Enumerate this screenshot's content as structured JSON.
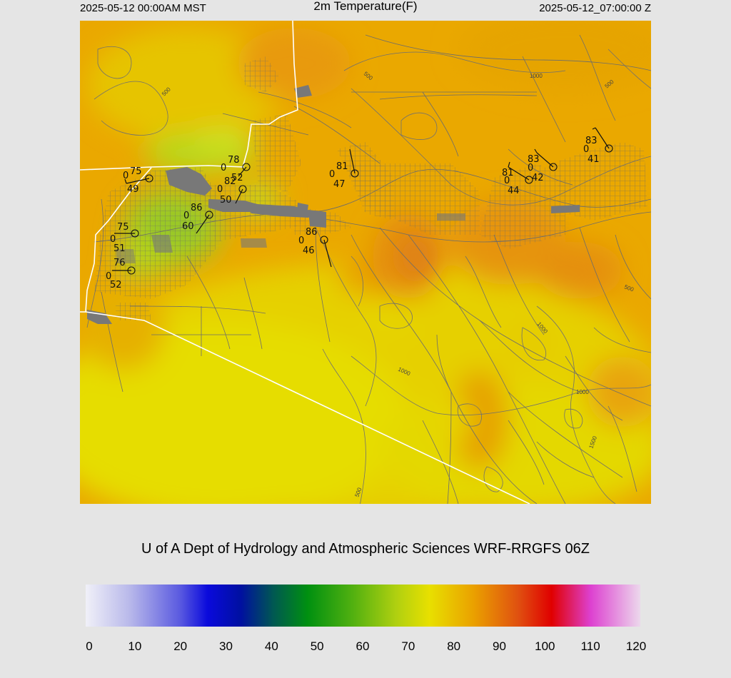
{
  "header": {
    "local_time": "2025-05-12 00:00AM MST",
    "title": "2m Temperature(F)",
    "utc_time": "2025-05-12_07:00:00 Z"
  },
  "credit": "U of A Dept of Hydrology and Atmospheric Sciences WRF-RRGFS 06Z",
  "colorbar": {
    "ticks": [
      "0",
      "10",
      "20",
      "30",
      "40",
      "50",
      "60",
      "70",
      "80",
      "90",
      "100",
      "110",
      "120"
    ],
    "range": [
      0,
      120
    ]
  },
  "contour_labels": [
    "500",
    "1000",
    "500",
    "500",
    "1000",
    "1000",
    "1000",
    "1500",
    "500",
    "500"
  ],
  "stations": [
    {
      "temp": "75",
      "wind": "0",
      "dew": "49"
    },
    {
      "temp": "78",
      "wind": "0",
      "dew": "52"
    },
    {
      "temp": "82",
      "wind": "0",
      "dew": "50"
    },
    {
      "temp": "86",
      "wind": "0",
      "dew": "60"
    },
    {
      "temp": "75",
      "wind": "0",
      "dew": "51"
    },
    {
      "temp": "76",
      "wind": "0",
      "dew": "52"
    },
    {
      "temp": "86",
      "wind": "0",
      "dew": "46"
    },
    {
      "temp": "81",
      "wind": "0",
      "dew": "47"
    },
    {
      "temp": "81",
      "wind": "0",
      "dew": "44"
    },
    {
      "temp": "83",
      "wind": "0",
      "dew": "42"
    },
    {
      "temp": "83",
      "wind": "0",
      "dew": "41"
    }
  ],
  "colors": {
    "background": "#e5e5e5",
    "field_base": "#eaa800",
    "field_warm": "#e48a12",
    "field_cool": "#a6d020",
    "field_yellow": "#e4dc00",
    "roads": "#777777",
    "borders": "#ffffff"
  }
}
